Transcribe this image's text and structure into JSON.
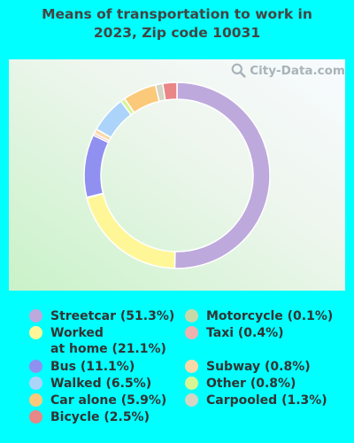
{
  "title_line1": "Means of transportation to work in",
  "title_line2": "2023, Zip code 10031",
  "watermark": "City-Data.com",
  "chart_data": {
    "type": "pie",
    "style": "donut",
    "title": "Means of transportation to work in 2023, Zip code 10031",
    "slices": [
      {
        "label": "Streetcar (51.3%)",
        "value": 51.3,
        "color": "#bda9dc"
      },
      {
        "label": "Worked at home (21.1%)",
        "value": 21.1,
        "color": "#fff797"
      },
      {
        "label": "Motorcycle (0.1%)",
        "value": 0.1,
        "color": "#c8d9a8"
      },
      {
        "label": "Bus (11.1%)",
        "value": 11.1,
        "color": "#9090f0"
      },
      {
        "label": "Taxi (0.4%)",
        "value": 0.4,
        "color": "#efb1ae"
      },
      {
        "label": "Subway (0.8%)",
        "value": 0.8,
        "color": "#fad9a9"
      },
      {
        "label": "Walked (6.5%)",
        "value": 6.5,
        "color": "#acd4fa"
      },
      {
        "label": "Other (0.8%)",
        "value": 0.8,
        "color": "#d7f593"
      },
      {
        "label": "Car alone (5.9%)",
        "value": 5.9,
        "color": "#fbc97a"
      },
      {
        "label": "Carpooled (1.3%)",
        "value": 1.3,
        "color": "#d5d5c3"
      },
      {
        "label": "Bicycle (2.5%)",
        "value": 2.5,
        "color": "#e98686"
      }
    ]
  },
  "legend_left": [
    {
      "lines": [
        "Streetcar (51.3%)"
      ],
      "color": "#bda9dc"
    },
    {
      "lines": [
        "Worked",
        "at home (21.1%)"
      ],
      "color": "#fff797"
    },
    {
      "lines": [
        "Bus (11.1%)"
      ],
      "color": "#9090f0"
    },
    {
      "lines": [
        "Walked (6.5%)"
      ],
      "color": "#acd4fa"
    },
    {
      "lines": [
        "Car alone (5.9%)"
      ],
      "color": "#fbc97a"
    },
    {
      "lines": [
        "Bicycle (2.5%)"
      ],
      "color": "#e98686"
    }
  ],
  "legend_right": [
    {
      "lines": [
        "Motorcycle (0.1%)"
      ],
      "color": "#c8d9a8"
    },
    {
      "lines": [
        "Taxi (0.4%)"
      ],
      "color": "#efb1ae"
    },
    {
      "lines": [
        "Subway (0.8%)"
      ],
      "color": "#fad9a9"
    },
    {
      "lines": [
        "Other (0.8%)"
      ],
      "color": "#d7f593"
    },
    {
      "lines": [
        "Carpooled (1.3%)"
      ],
      "color": "#d5d5c3"
    }
  ]
}
